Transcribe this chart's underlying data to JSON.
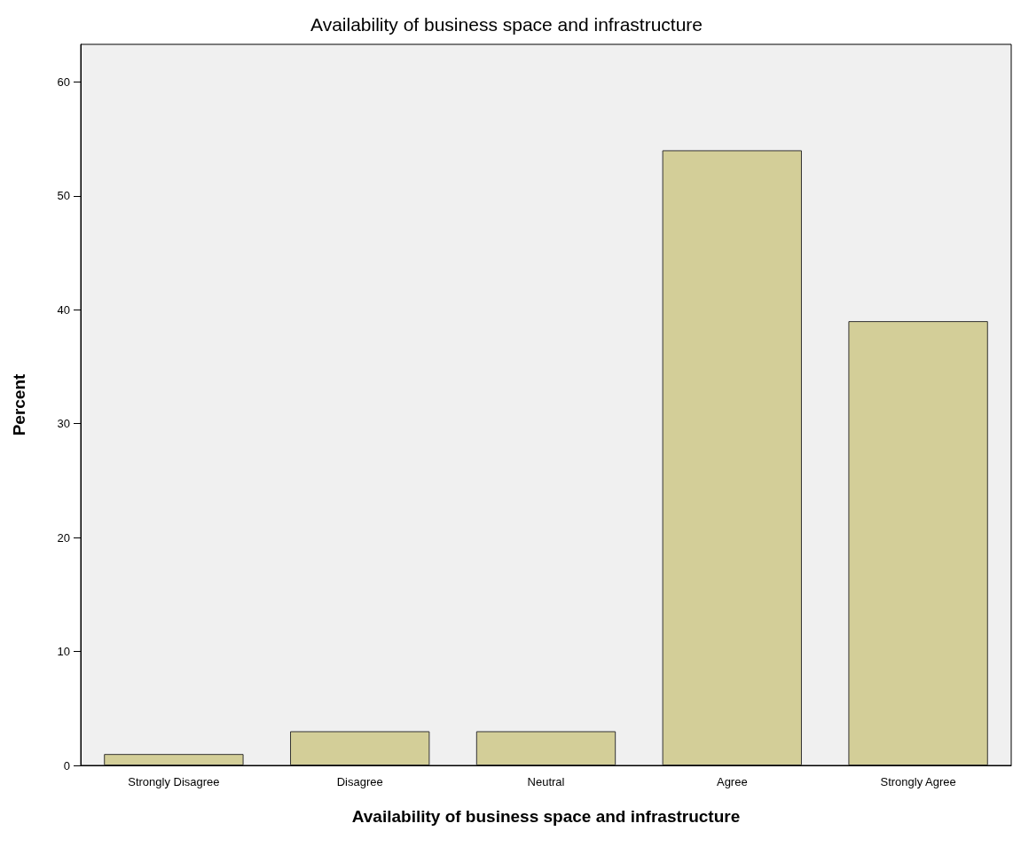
{
  "chart_data": {
    "type": "bar",
    "title": "Availability of business space and infrastructure",
    "xlabel": "Availability of business space and infrastructure",
    "ylabel": "Percent",
    "categories": [
      "Strongly Disagree",
      "Disagree",
      "Neutral",
      "Agree",
      "Strongly Agree"
    ],
    "values": [
      1,
      3,
      3,
      54,
      39
    ],
    "color": "#d3ce98",
    "ylim": [
      0,
      63.3
    ],
    "yticks": [
      0,
      10,
      20,
      30,
      40,
      50,
      60
    ]
  }
}
